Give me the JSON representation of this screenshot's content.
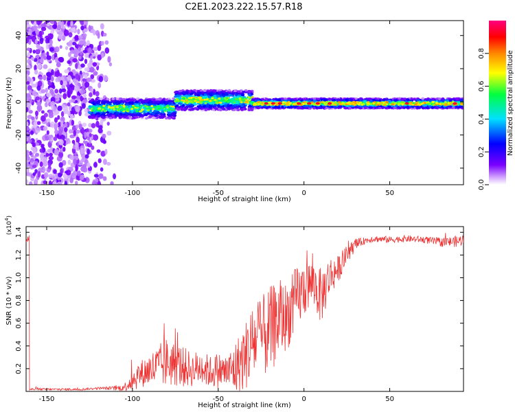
{
  "title": "C2E1.2023.222.15.57.R18",
  "chart_data": [
    {
      "type": "heatmap",
      "xlabel": "Height of straight line (km)",
      "ylabel": "Frequency (Hz)",
      "xlim": [
        -162,
        93
      ],
      "ylim": [
        -50,
        49
      ],
      "x_ticks": [
        -150,
        -100,
        -50,
        0,
        50
      ],
      "y_ticks": [
        -40,
        -20,
        0,
        20,
        40
      ],
      "colorbar": {
        "label": "Normalized spectral amplitude",
        "range": [
          0,
          1
        ],
        "ticks": [
          "0.0",
          "0.2",
          "0.4",
          "0.6",
          "0.8"
        ],
        "colormap": [
          "#ffffff",
          "#7a00ff",
          "#0000ff",
          "#00e0ff",
          "#00ff40",
          "#ffff00",
          "#ff8800",
          "#ff0000",
          "#ff0080"
        ]
      },
      "description_bands": [
        {
          "x_range": [
            -162,
            -110
          ],
          "freq_range": [
            -50,
            49
          ],
          "level": 0.1,
          "pattern": "scattered noise"
        },
        {
          "x_range": [
            -125,
            -75
          ],
          "center_freq": -4,
          "half_width": 6,
          "level": 0.45
        },
        {
          "x_range": [
            -75,
            -30
          ],
          "center_freq": 1,
          "half_width": 6,
          "level": 0.5
        },
        {
          "x_range": [
            -30,
            93
          ],
          "center_freq": -1,
          "half_width": 3,
          "level": 0.55
        }
      ]
    },
    {
      "type": "line",
      "xlabel": "Height of straight line (km)",
      "ylabel": "SNR (10 * v/v)",
      "multiplier_label": "(x10",
      "multiplier_exp": "4",
      "multiplier_close": ")",
      "xlim": [
        -162,
        93
      ],
      "ylim": [
        0,
        1.45
      ],
      "x_ticks": [
        -150,
        -100,
        -50,
        0,
        50
      ],
      "y_ticks": [
        "0.2",
        "0.4",
        "0.6",
        "0.8",
        "1.0",
        "1.2",
        "1.4"
      ],
      "line_color": "#ee3333",
      "series": [
        {
          "x": [
            -160,
            -150,
            -140,
            -130,
            -120,
            -110,
            -105,
            -100,
            -95,
            -90,
            -85,
            -80,
            -75,
            -70,
            -65,
            -60,
            -55,
            -50,
            -45,
            -40,
            -35,
            -30,
            -25,
            -20,
            -15,
            -10,
            -5,
            0,
            5,
            10,
            15,
            20,
            25,
            30,
            35,
            40,
            50,
            60,
            70,
            80,
            90,
            93
          ],
          "y": [
            0.02,
            0.02,
            0.02,
            0.02,
            0.03,
            0.03,
            0.04,
            0.12,
            0.18,
            0.22,
            0.25,
            0.3,
            0.28,
            0.25,
            0.22,
            0.25,
            0.2,
            0.22,
            0.2,
            0.25,
            0.35,
            0.5,
            0.55,
            0.6,
            0.7,
            0.72,
            0.85,
            0.95,
            1.0,
            0.88,
            1.05,
            1.1,
            1.22,
            1.3,
            1.33,
            1.35,
            1.34,
            1.35,
            1.34,
            1.32,
            1.33,
            1.35
          ],
          "noise": [
            0.01,
            0.01,
            0.01,
            0.01,
            0.01,
            0.02,
            0.03,
            0.1,
            0.12,
            0.15,
            0.2,
            0.22,
            0.2,
            0.18,
            0.15,
            0.16,
            0.14,
            0.16,
            0.15,
            0.25,
            0.3,
            0.35,
            0.35,
            0.4,
            0.35,
            0.3,
            0.3,
            0.25,
            0.2,
            0.25,
            0.18,
            0.12,
            0.08,
            0.05,
            0.03,
            0.03,
            0.03,
            0.03,
            0.03,
            0.04,
            0.05,
            0.05
          ]
        }
      ]
    }
  ]
}
